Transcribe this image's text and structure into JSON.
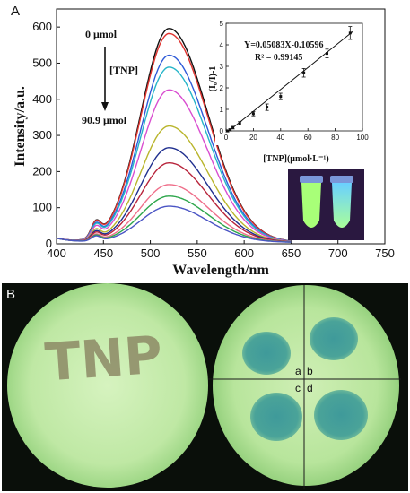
{
  "panel_a_label": "A",
  "panel_b_label": "B",
  "chart_data": [
    {
      "type": "line",
      "xlabel": "Wavelength/nm",
      "ylabel": "Intensity/a.u.",
      "xlim": [
        400,
        750
      ],
      "ylim": [
        0,
        650
      ],
      "xticks": [
        400,
        450,
        500,
        550,
        600,
        650,
        700,
        750
      ],
      "yticks": [
        0,
        100,
        200,
        300,
        400,
        500,
        600
      ],
      "annotations": {
        "top": "0 μmol",
        "middle": "[TNP]",
        "bottom": "90.9 μmol"
      },
      "x_range": [
        400,
        650
      ],
      "peak_wavelength": 520,
      "series": [
        {
          "color": "#111111",
          "peak": 592
        },
        {
          "color": "#e0332f",
          "peak": 578
        },
        {
          "color": "#2f5bd8",
          "peak": 518
        },
        {
          "color": "#26b5c9",
          "peak": 485
        },
        {
          "color": "#d94dd0",
          "peak": 422
        },
        {
          "color": "#b9b52c",
          "peak": 322
        },
        {
          "color": "#1f2f8f",
          "peak": 262
        },
        {
          "color": "#b8253c",
          "peak": 220
        },
        {
          "color": "#ef6f8a",
          "peak": 160
        },
        {
          "color": "#2da64b",
          "peak": 128
        },
        {
          "color": "#4a54c4",
          "peak": 100
        }
      ]
    },
    {
      "type": "scatter",
      "xlabel": "[TNP](μmol·L⁻¹)",
      "ylabel": "(I₀/I)-1",
      "xlim": [
        0,
        100
      ],
      "ylim": [
        0,
        5
      ],
      "xticks": [
        0,
        20,
        40,
        60,
        80,
        100
      ],
      "yticks": [
        0,
        1,
        2,
        3,
        4,
        5
      ],
      "equation": "Y=0.05083X-0.10596",
      "r_squared": "R² = 0.99145",
      "fit": {
        "slope": 0.05083,
        "intercept": -0.10596
      },
      "points": [
        {
          "x": 1,
          "y": 0.0,
          "err": 0.05
        },
        {
          "x": 3,
          "y": 0.05,
          "err": 0.05
        },
        {
          "x": 5,
          "y": 0.15,
          "err": 0.06
        },
        {
          "x": 10,
          "y": 0.35,
          "err": 0.08
        },
        {
          "x": 20,
          "y": 0.8,
          "err": 0.1
        },
        {
          "x": 30,
          "y": 1.1,
          "err": 0.15
        },
        {
          "x": 40,
          "y": 1.6,
          "err": 0.15
        },
        {
          "x": 57,
          "y": 2.7,
          "err": 0.2
        },
        {
          "x": 74,
          "y": 3.6,
          "err": 0.2
        },
        {
          "x": 91,
          "y": 4.55,
          "err": 0.3
        }
      ]
    }
  ],
  "photo_b": {
    "left_text": "TNP",
    "quadrants": [
      "a",
      "b",
      "c",
      "d"
    ]
  }
}
